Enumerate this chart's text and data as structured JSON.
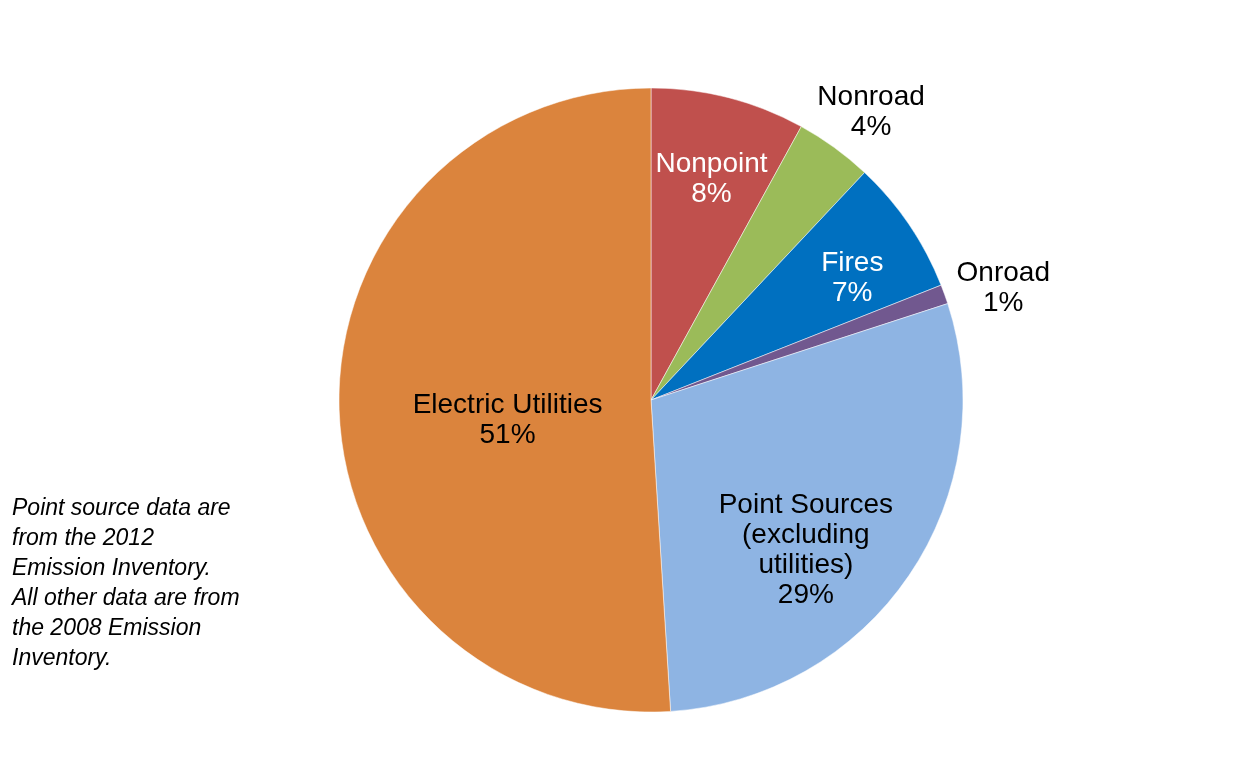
{
  "chart_data": {
    "type": "pie",
    "categories": [
      "Nonpoint",
      "Nonroad",
      "Fires",
      "Onroad",
      "Point Sources\n(excluding\nutilities)",
      "Electric Utilities"
    ],
    "values": [
      8,
      4,
      7,
      1,
      29,
      51
    ],
    "value_labels": [
      "8%",
      "4%",
      "7%",
      "1%",
      "29%",
      "51%"
    ],
    "colors": [
      "#c0504d",
      "#9bbb59",
      "#0070c0",
      "#71588f",
      "#8eb4e3",
      "#db843d"
    ],
    "annotations": [
      "Point source data are\nfrom the 2012\nEmission Inventory.\nAll other data are from\nthe 2008 Emission\nInventory."
    ]
  }
}
